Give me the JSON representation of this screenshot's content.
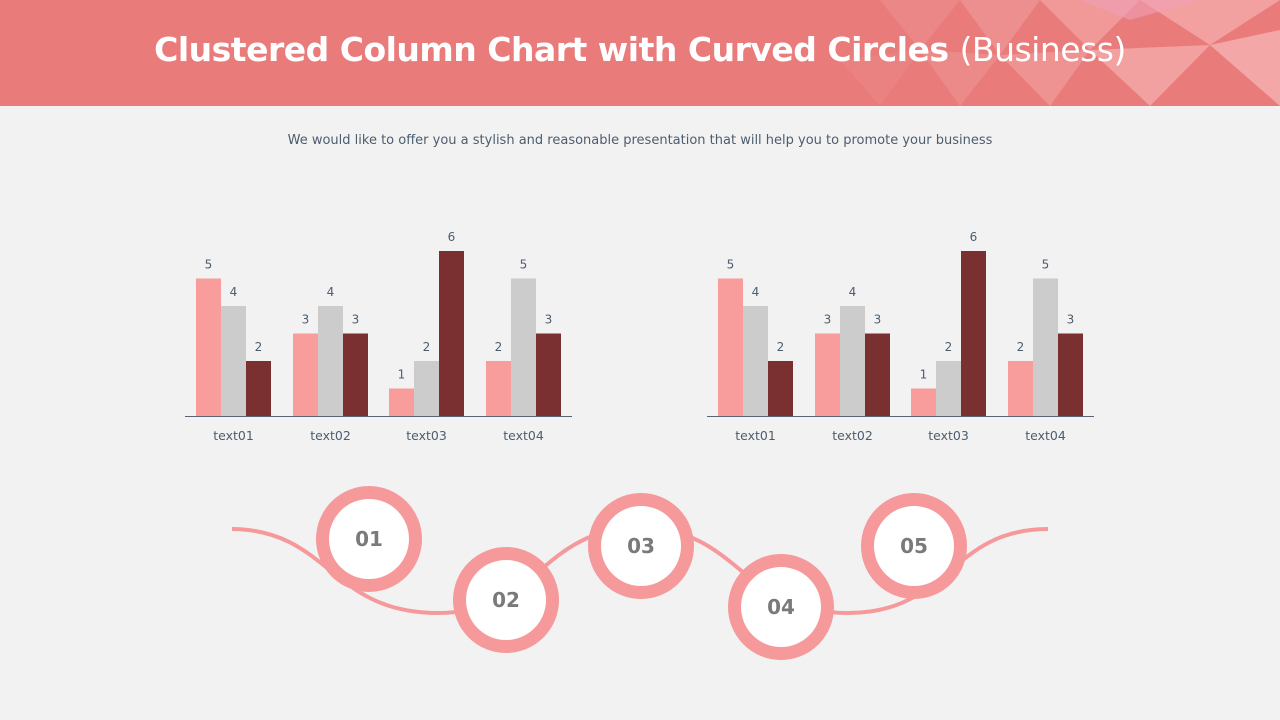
{
  "header": {
    "title": "Clustered Column Chart with Curved Circles",
    "title_suffix": "(Business)",
    "subtitle": "We would like to offer you a stylish and reasonable presentation that will help you to promote your business"
  },
  "colors": {
    "header_bg": "#e97b7b",
    "series1": "#f89c9c",
    "series2": "#cccccc",
    "series3": "#7a3031",
    "circle_ring": "#f5999b",
    "text": "#4c5d6e"
  },
  "chart_data": [
    {
      "type": "bar",
      "categories": [
        "text01",
        "text02",
        "text03",
        "text04"
      ],
      "series": [
        {
          "values": [
            5,
            3,
            1,
            2
          ]
        },
        {
          "values": [
            4,
            4,
            2,
            5
          ]
        },
        {
          "values": [
            2,
            3,
            6,
            3
          ]
        }
      ],
      "ylim": [
        0,
        6
      ],
      "grid": false
    },
    {
      "type": "bar",
      "categories": [
        "text01",
        "text02",
        "text03",
        "text04"
      ],
      "series": [
        {
          "values": [
            5,
            3,
            1,
            2
          ]
        },
        {
          "values": [
            4,
            4,
            2,
            5
          ]
        },
        {
          "values": [
            2,
            3,
            6,
            3
          ]
        }
      ],
      "ylim": [
        0,
        6
      ],
      "grid": false
    }
  ],
  "steps": [
    "01",
    "02",
    "03",
    "04",
    "05"
  ]
}
